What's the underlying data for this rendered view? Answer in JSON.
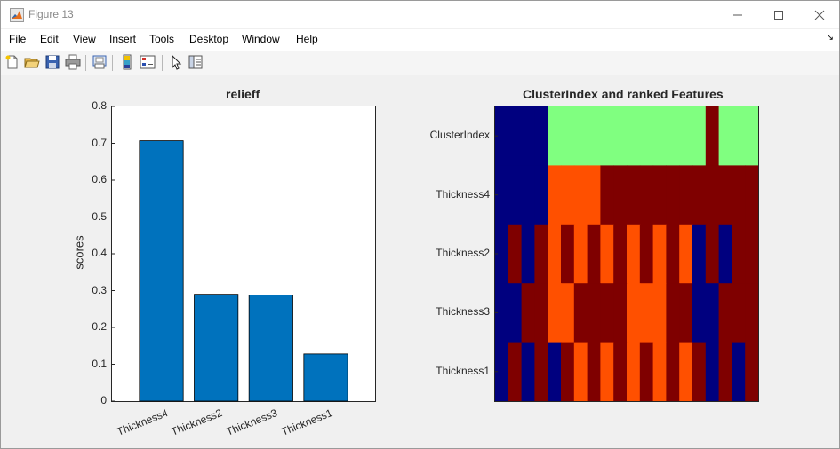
{
  "window": {
    "title": "Figure 13"
  },
  "menu": [
    "File",
    "Edit",
    "View",
    "Insert",
    "Tools",
    "Desktop",
    "Window",
    "Help"
  ],
  "toolbar": {
    "buttons": [
      "new-figure",
      "open-file",
      "save",
      "print",
      "print-preview",
      "link-plot",
      "insert-legend",
      "edit-pointer",
      "property-inspector"
    ]
  },
  "chart_data": [
    {
      "type": "bar",
      "title": "relieff",
      "ylabel": "scores",
      "xlabel": "",
      "categories": [
        "Thickness4",
        "Thickness2",
        "Thickness3",
        "Thickness1"
      ],
      "values": [
        0.707,
        0.29,
        0.288,
        0.128
      ],
      "ylim": [
        0,
        0.8
      ],
      "yticks": [
        "0",
        "0.1",
        "0.2",
        "0.3",
        "0.4",
        "0.5",
        "0.6",
        "0.7",
        "0.8"
      ],
      "bar_color": "#0072bd",
      "grid": false
    },
    {
      "type": "heatmap",
      "title": "ClusterIndex and ranked Features",
      "rows": [
        "ClusterIndex",
        "Thickness4",
        "Thickness2",
        "Thickness3",
        "Thickness1"
      ],
      "colormap": {
        "0": "#00007f",
        "1": "#7f0000",
        "2": "#ff5000",
        "3": "#80ff80"
      },
      "cells": [
        [
          [
            0,
            1
          ],
          [
            1,
            1
          ],
          [
            2,
            1
          ],
          [
            3,
            1
          ],
          [
            4,
            1
          ],
          [
            5,
            1
          ],
          [
            6,
            1
          ],
          [
            7,
            1
          ],
          [
            8,
            1
          ],
          [
            9,
            1
          ],
          [
            10,
            1
          ],
          [
            11,
            1
          ],
          [
            12,
            1
          ],
          [
            13,
            1
          ],
          [
            14,
            1
          ],
          [
            15,
            1
          ],
          [
            16,
            1
          ]
        ],
        [
          {
            "s": 0,
            "e": 4,
            "c": 0
          },
          {
            "s": 4,
            "e": 8,
            "c": 3
          },
          {
            "s": 8,
            "e": 12,
            "c": 3
          },
          {
            "s": 12,
            "e": 16,
            "c": 3
          },
          {
            "s": 16,
            "e": 17,
            "c": 1
          },
          {
            "s": 17,
            "e": 20,
            "c": 3
          },
          {
            "s": 20,
            "e": 24,
            "c": 3
          }
        ]
      ],
      "matrix": [
        [
          0,
          0,
          0,
          0,
          3,
          3,
          3,
          3,
          3,
          3,
          3,
          3,
          3,
          3,
          3,
          3,
          1,
          3,
          3,
          3
        ],
        [
          0,
          0,
          0,
          0,
          2,
          2,
          2,
          2,
          1,
          1,
          1,
          1,
          1,
          1,
          1,
          1,
          1,
          1,
          1,
          1
        ],
        [
          0,
          1,
          0,
          1,
          2,
          1,
          2,
          1,
          2,
          1,
          2,
          1,
          2,
          1,
          2,
          0,
          1,
          0,
          1,
          1
        ],
        [
          0,
          0,
          1,
          1,
          2,
          2,
          1,
          1,
          1,
          1,
          2,
          2,
          2,
          1,
          1,
          0,
          0,
          1,
          1,
          1
        ],
        [
          0,
          1,
          0,
          1,
          0,
          1,
          2,
          1,
          2,
          1,
          2,
          1,
          2,
          1,
          2,
          1,
          0,
          1,
          0,
          1
        ]
      ]
    }
  ]
}
